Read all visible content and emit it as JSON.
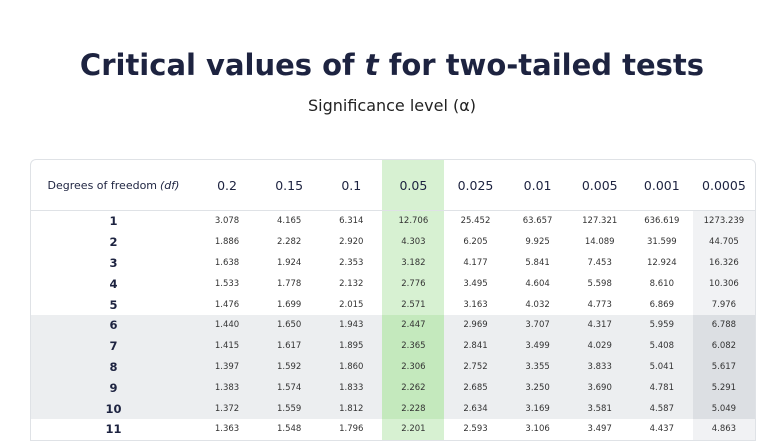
{
  "title": {
    "before": "Critical values of ",
    "variable": "t",
    "after": " for two-tailed tests"
  },
  "subtitle": "Significance level (α)",
  "table": {
    "header": {
      "label": "Degrees of freedom ",
      "label_variable": "(df)",
      "levels": [
        "0.2",
        "0.15",
        "0.1",
        "0.05",
        "0.025",
        "0.01",
        "0.005",
        "0.001",
        "0.0005"
      ]
    },
    "rows": [
      [
        "1",
        "3.078",
        "4.165",
        "6.314",
        "12.706",
        "25.452",
        "63.657",
        "127.321",
        "636.619",
        "1273.239"
      ],
      [
        "2",
        "1.886",
        "2.282",
        "2.920",
        "4.303",
        "6.205",
        "9.925",
        "14.089",
        "31.599",
        "44.705"
      ],
      [
        "3",
        "1.638",
        "1.924",
        "2.353",
        "3.182",
        "4.177",
        "5.841",
        "7.453",
        "12.924",
        "16.326"
      ],
      [
        "4",
        "1.533",
        "1.778",
        "2.132",
        "2.776",
        "3.495",
        "4.604",
        "5.598",
        "8.610",
        "10.306"
      ],
      [
        "5",
        "1.476",
        "1.699",
        "2.015",
        "2.571",
        "3.163",
        "4.032",
        "4.773",
        "6.869",
        "7.976"
      ],
      [
        "6",
        "1.440",
        "1.650",
        "1.943",
        "2.447",
        "2.969",
        "3.707",
        "4.317",
        "5.959",
        "6.788"
      ],
      [
        "7",
        "1.415",
        "1.617",
        "1.895",
        "2.365",
        "2.841",
        "3.499",
        "4.029",
        "5.408",
        "6.082"
      ],
      [
        "8",
        "1.397",
        "1.592",
        "1.860",
        "2.306",
        "2.752",
        "3.355",
        "3.833",
        "5.041",
        "5.617"
      ],
      [
        "9",
        "1.383",
        "1.574",
        "1.833",
        "2.262",
        "2.685",
        "3.250",
        "3.690",
        "4.781",
        "5.291"
      ],
      [
        "10",
        "1.372",
        "1.559",
        "1.812",
        "2.228",
        "2.634",
        "3.169",
        "3.581",
        "4.587",
        "5.049"
      ],
      [
        "11",
        "1.363",
        "1.548",
        "1.796",
        "2.201",
        "2.593",
        "3.106",
        "3.497",
        "4.437",
        "4.863"
      ]
    ]
  }
}
